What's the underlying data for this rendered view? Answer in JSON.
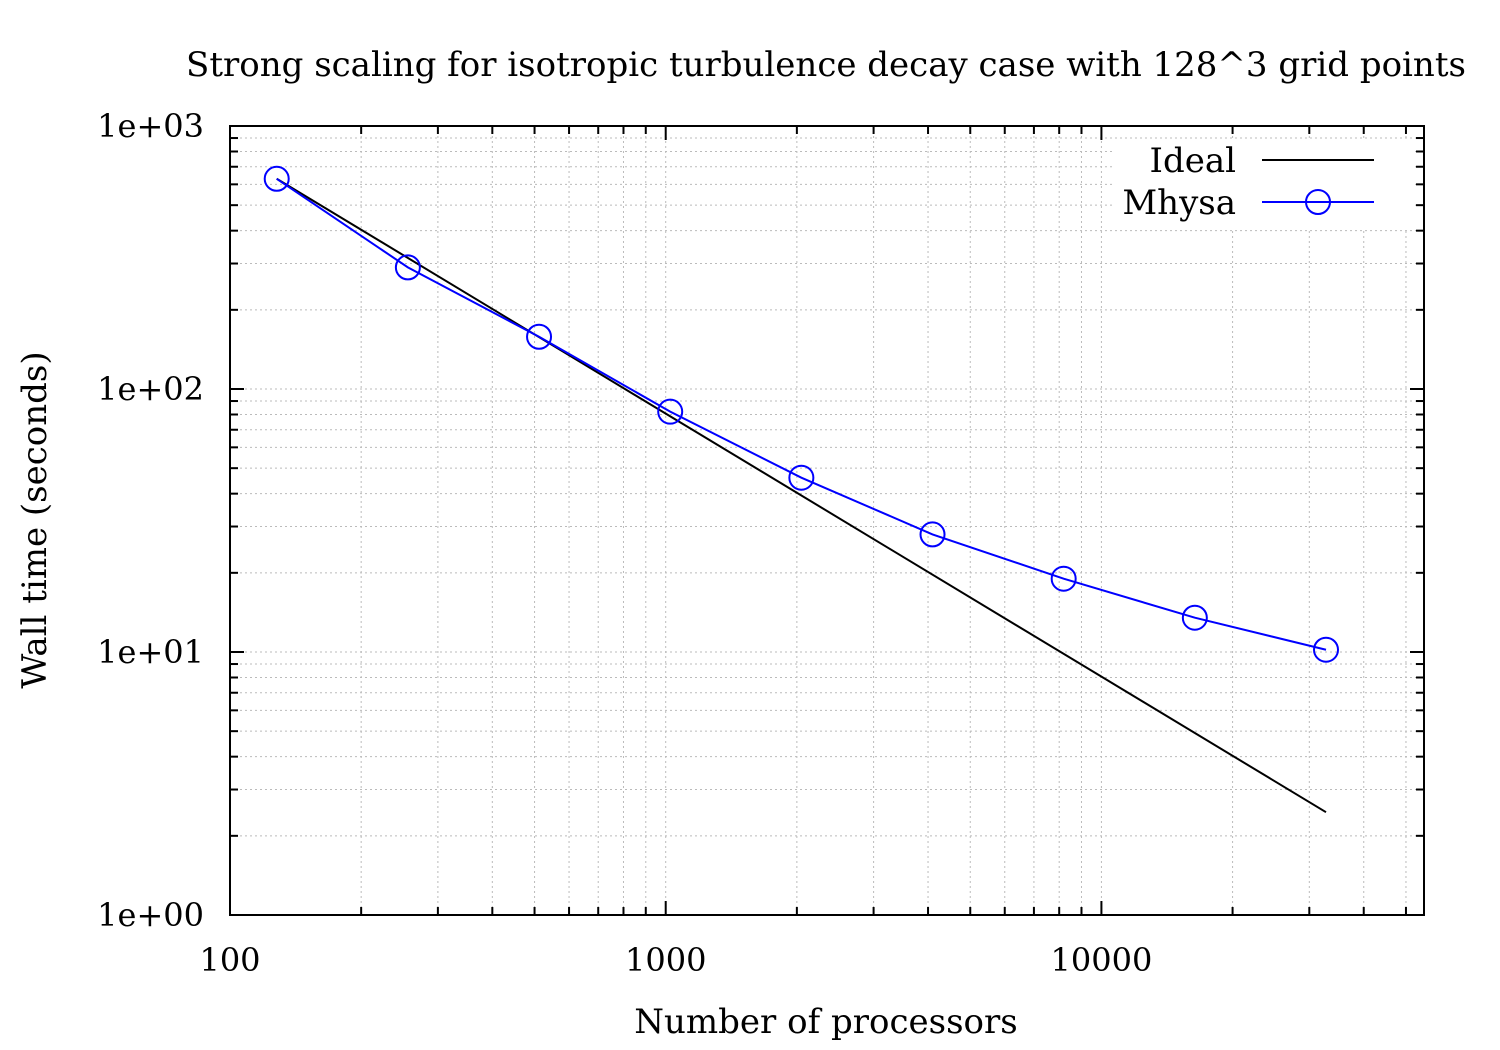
{
  "chart_data": {
    "type": "line",
    "title": "Strong scaling for isotropic turbulence decay case with 128^3 grid points",
    "xlabel": "Number of processors",
    "ylabel": "Wall time (seconds)",
    "x_scale": "log",
    "y_scale": "log",
    "xlim": [
      100,
      55000
    ],
    "ylim": [
      1,
      1000
    ],
    "x_ticks": [
      100,
      1000,
      10000
    ],
    "x_tick_labels": [
      "100",
      "1000",
      "10000"
    ],
    "y_ticks": [
      1,
      10,
      100,
      1000
    ],
    "y_tick_labels": [
      "1e+00",
      "1e+01",
      "1e+02",
      "1e+03"
    ],
    "grid": true,
    "legend_position": "top-right",
    "series": [
      {
        "name": "Ideal",
        "color": "#000000",
        "marker": "none",
        "x": [
          128,
          32768
        ],
        "y": [
          630,
          2.46
        ]
      },
      {
        "name": "Mhysa",
        "color": "#0000ff",
        "marker": "circle",
        "x": [
          128,
          256,
          512,
          1024,
          2048,
          4096,
          8192,
          16384,
          32768
        ],
        "y": [
          630,
          290,
          158,
          82,
          46,
          28,
          19,
          13.5,
          10.2
        ]
      }
    ]
  }
}
